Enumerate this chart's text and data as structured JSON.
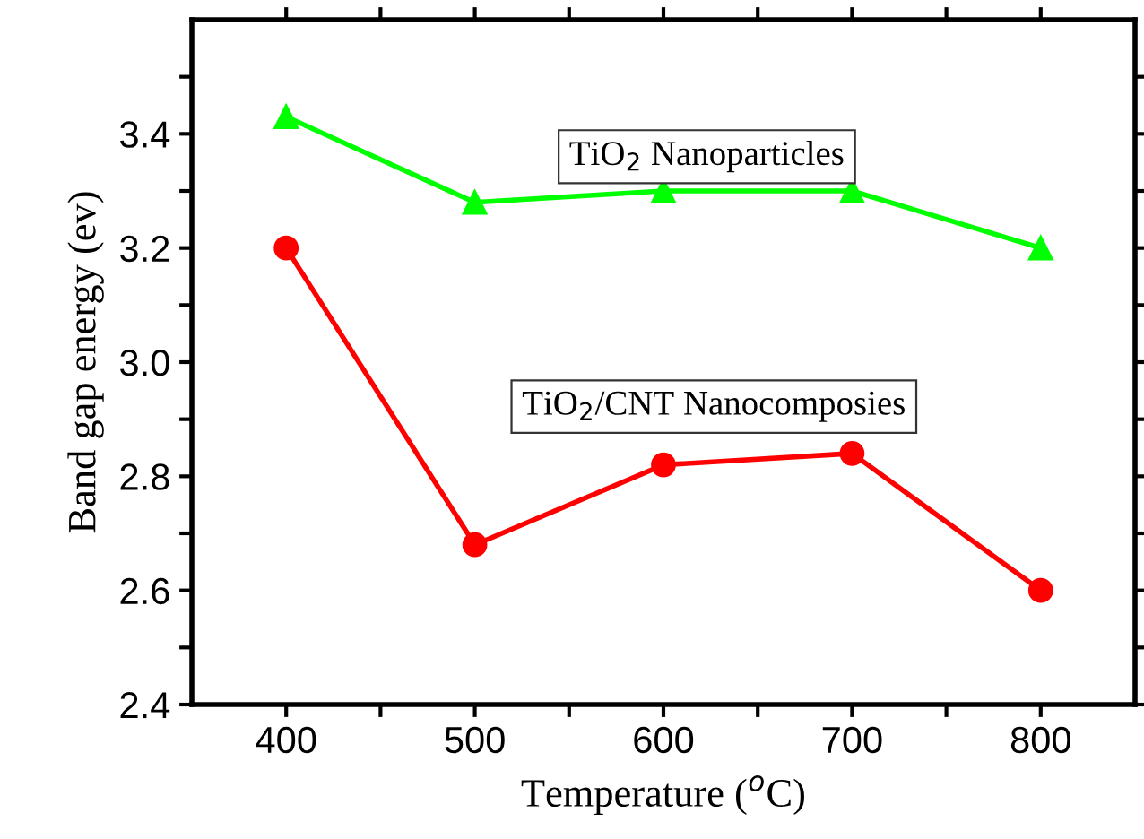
{
  "chart_data": {
    "type": "line",
    "xlabel": "Temperature ($^{o}$C)",
    "ylabel": "Band gap energy (ev)",
    "x": [
      400,
      500,
      600,
      700,
      800
    ],
    "series": [
      {
        "name": "TiO$_{2}$ Nanoparticles",
        "color": "#00ff00",
        "marker": "triangle",
        "values": [
          3.43,
          3.28,
          3.3,
          3.3,
          3.2
        ]
      },
      {
        "name": "TiO$_{2}$/CNT Nanocomposies",
        "color": "#ff0000",
        "marker": "circle",
        "values": [
          3.2,
          2.68,
          2.82,
          2.84,
          2.6
        ]
      }
    ],
    "xlim": [
      350,
      850
    ],
    "xticks": [
      400,
      {
        "value": 450,
        "label": null
      },
      500,
      {
        "value": 550,
        "label": null
      },
      600,
      {
        "value": 650,
        "label": null
      },
      700,
      {
        "value": 750,
        "label": null
      },
      800
    ],
    "ylim": [
      2.4,
      3.6
    ],
    "yticks": [
      2.4,
      {
        "value": 2.5,
        "label": null
      },
      2.6,
      {
        "value": 2.7,
        "label": null
      },
      2.8,
      {
        "value": 2.9,
        "label": null
      },
      {
        "value": 3.0,
        "label": "3.0"
      },
      {
        "value": 3.1,
        "label": null
      },
      3.2,
      {
        "value": 3.3,
        "label": null
      },
      3.4,
      {
        "value": 3.5,
        "label": null
      }
    ],
    "grid": false,
    "legend": false,
    "line_style": "solid"
  }
}
